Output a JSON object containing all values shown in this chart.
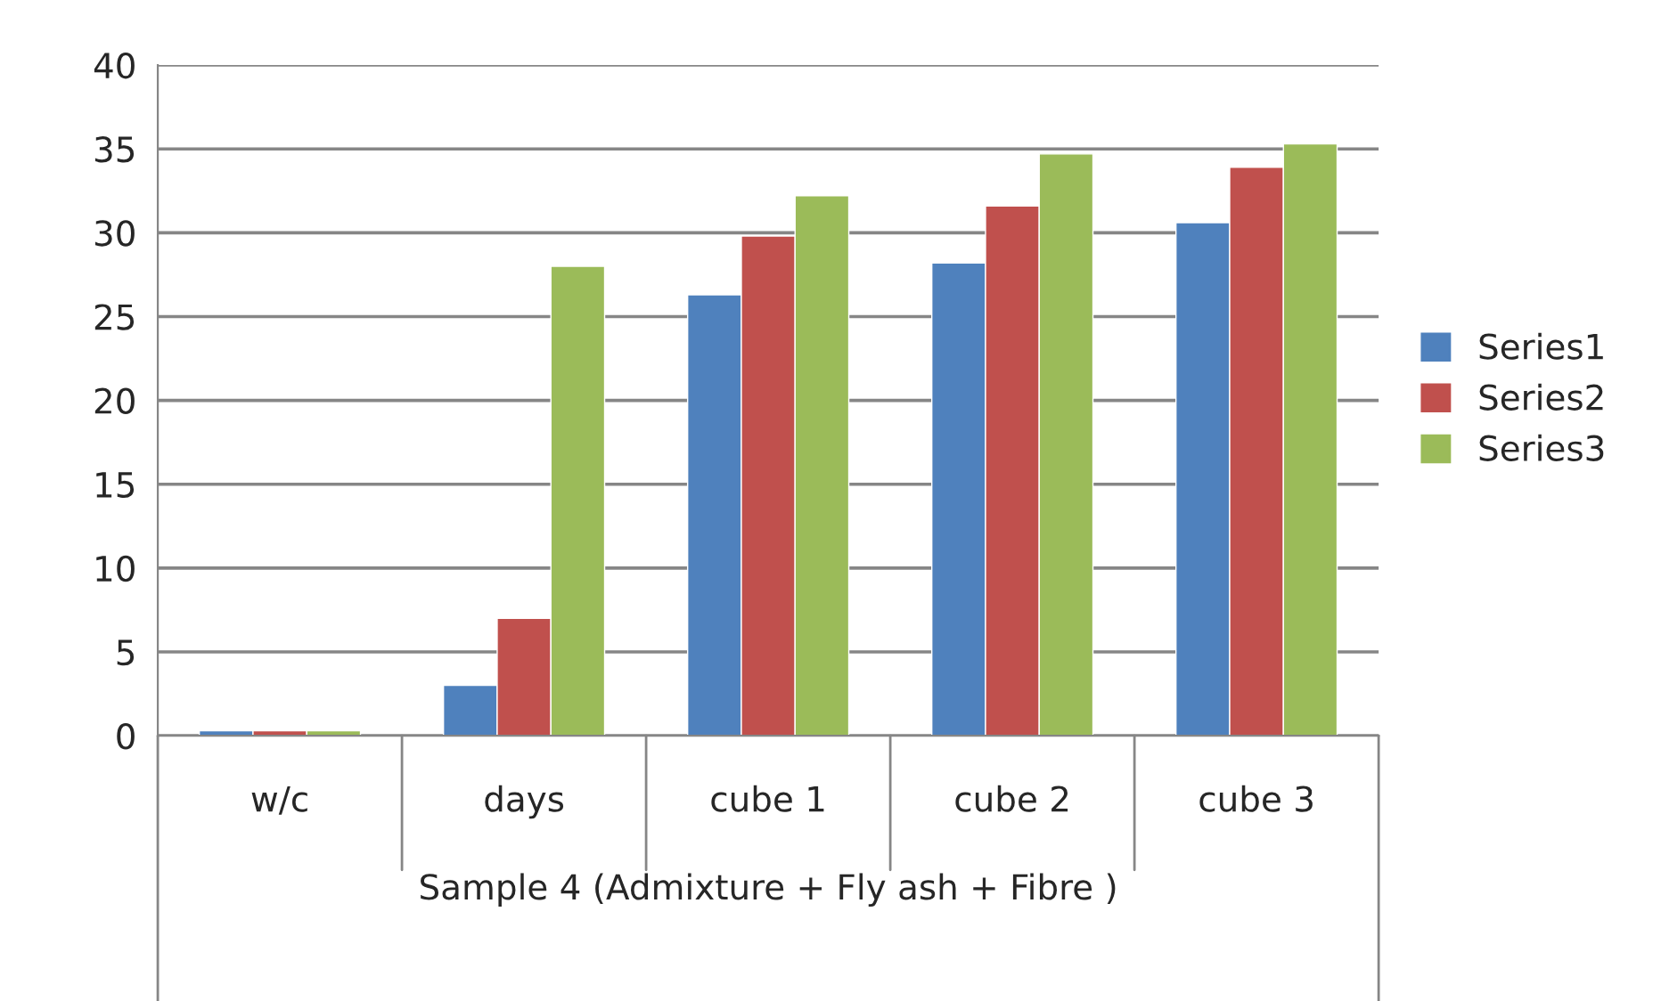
{
  "chart_data": {
    "type": "bar",
    "xlabel": "Sample 4 (Admixture + Fly ash + Fibre )",
    "categories": [
      "w/c",
      "days",
      "cube 1",
      "cube 2",
      "cube 3"
    ],
    "series": [
      {
        "name": "Series1",
        "color": "#4f81bd",
        "values": [
          0.3,
          3.0,
          26.3,
          28.2,
          30.6
        ]
      },
      {
        "name": "Series2",
        "color": "#c0504d",
        "values": [
          0.3,
          7.0,
          29.8,
          31.6,
          33.9
        ]
      },
      {
        "name": "Series3",
        "color": "#9bbb59",
        "values": [
          0.3,
          28.0,
          32.2,
          34.7,
          35.3
        ]
      }
    ],
    "ylim": [
      0,
      40
    ],
    "yticks": [
      0,
      5,
      10,
      15,
      20,
      25,
      30,
      35,
      40
    ],
    "grid": "y",
    "legend": "right"
  }
}
